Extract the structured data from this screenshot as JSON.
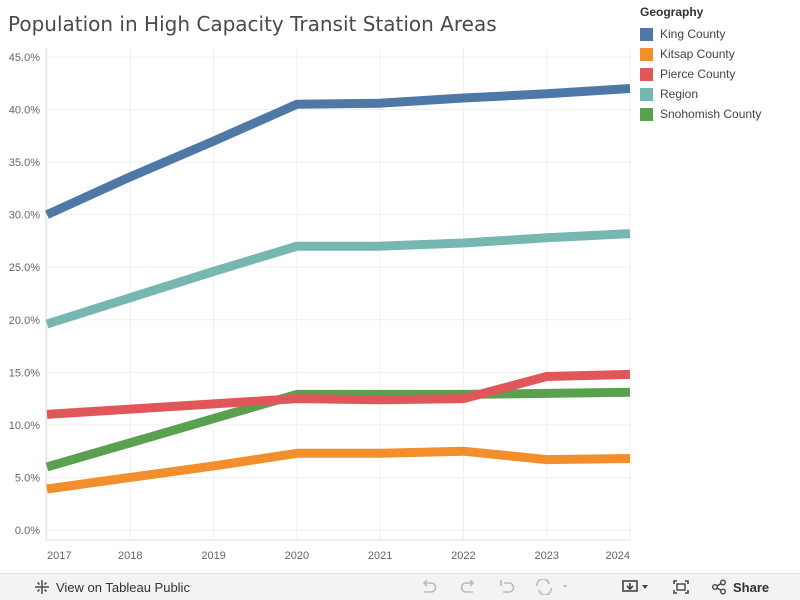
{
  "title": "Population in High Capacity Transit Station Areas",
  "legend": {
    "title": "Geography",
    "items": [
      {
        "label": "King County",
        "color": "#4e79a7"
      },
      {
        "label": "Kitsap County",
        "color": "#f28e2b"
      },
      {
        "label": "Pierce County",
        "color": "#e15759"
      },
      {
        "label": "Region",
        "color": "#76b7b2"
      },
      {
        "label": "Snohomish County",
        "color": "#59a14f"
      }
    ]
  },
  "toolbar": {
    "view_label": "View on Tableau Public",
    "share_label": "Share"
  },
  "chart_data": {
    "type": "line",
    "title": "Population in High Capacity Transit Station Areas",
    "xlabel": "",
    "ylabel": "",
    "x": [
      2017,
      2018,
      2019,
      2020,
      2021,
      2022,
      2023,
      2024
    ],
    "x_tick_labels": [
      "2017",
      "2018",
      "2019",
      "2020",
      "2021",
      "2022",
      "2023",
      "2024"
    ],
    "ylim": [
      0,
      45
    ],
    "y_ticks": [
      0,
      5,
      10,
      15,
      20,
      25,
      30,
      35,
      40,
      45
    ],
    "y_tick_labels": [
      "0.0%",
      "5.0%",
      "10.0%",
      "15.0%",
      "20.0%",
      "25.0%",
      "30.0%",
      "35.0%",
      "40.0%",
      "45.0%"
    ],
    "grid": true,
    "legend_position": "top-right",
    "series": [
      {
        "name": "King County",
        "color": "#4e79a7",
        "values": [
          30.0,
          33.6,
          37.0,
          40.5,
          40.6,
          41.1,
          41.5,
          42.0
        ]
      },
      {
        "name": "Kitsap County",
        "color": "#f28e2b",
        "values": [
          3.9,
          5.0,
          6.1,
          7.3,
          7.3,
          7.5,
          6.7,
          6.8
        ]
      },
      {
        "name": "Pierce County",
        "color": "#e15759",
        "values": [
          11.0,
          11.5,
          12.0,
          12.5,
          12.4,
          12.5,
          14.6,
          14.8
        ]
      },
      {
        "name": "Region",
        "color": "#76b7b2",
        "values": [
          19.6,
          22.1,
          24.6,
          27.0,
          27.0,
          27.3,
          27.8,
          28.2
        ]
      },
      {
        "name": "Snohomish County",
        "color": "#59a14f",
        "values": [
          6.0,
          8.3,
          10.6,
          12.9,
          12.9,
          12.9,
          13.0,
          13.1
        ]
      }
    ]
  }
}
